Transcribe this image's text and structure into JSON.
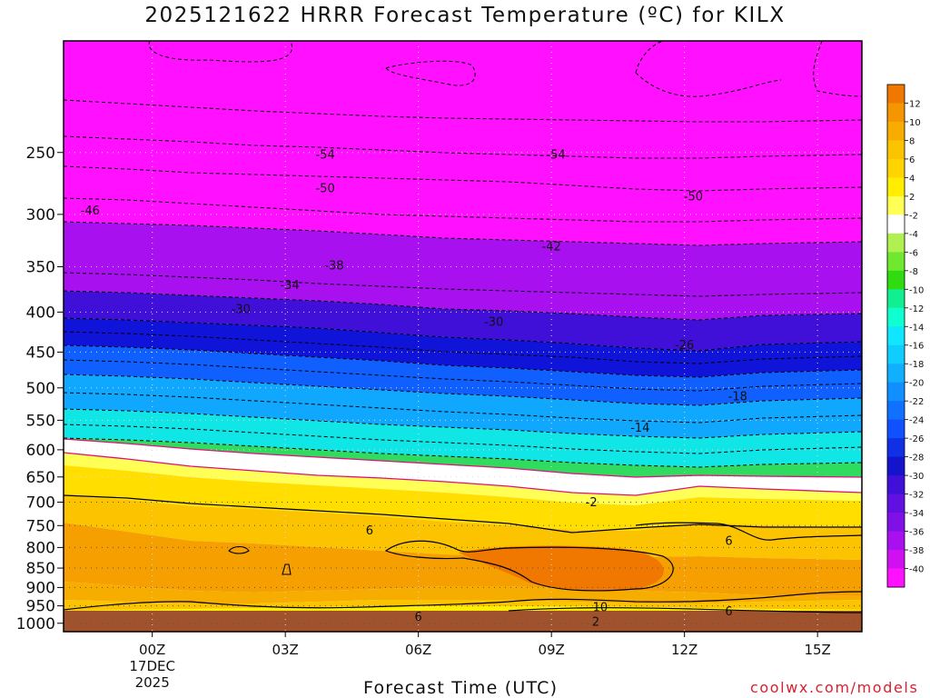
{
  "title": "2025121622 HRRR Forecast Temperature (ºC) for KILX",
  "credit": "coolwx.com/models",
  "chart_data": {
    "type": "contour",
    "title": "2025121622 HRRR Forecast Temperature (ºC) for KILX",
    "xlabel": "Forecast Time (UTC)",
    "ylabel": "",
    "xlim": [
      "2025-12-16 22:00",
      "2025-12-17 16:00"
    ],
    "ylim": [
      1025,
      180
    ],
    "y_scale": "log-pressure (hPa)",
    "x_ticks": [
      {
        "label": "00Z",
        "sub": [
          "17DEC",
          "2025"
        ],
        "hour": 2
      },
      {
        "label": "03Z",
        "hour": 5
      },
      {
        "label": "06Z",
        "hour": 8
      },
      {
        "label": "09Z",
        "hour": 11
      },
      {
        "label": "12Z",
        "hour": 14
      },
      {
        "label": "15Z",
        "hour": 17
      }
    ],
    "y_ticks": [
      250,
      300,
      350,
      400,
      450,
      500,
      550,
      600,
      650,
      700,
      750,
      800,
      850,
      900,
      950,
      1000
    ],
    "grid": true,
    "colorbar": {
      "labels": [
        "12",
        "10",
        "8",
        "6",
        "4",
        "2",
        "-2",
        "-4",
        "-6",
        "-8",
        "-10",
        "-12",
        "-14",
        "-16",
        "-18",
        "-20",
        "-22",
        "-24",
        "-26",
        "-28",
        "-30",
        "-32",
        "-34",
        "-36",
        "-38",
        "-40"
      ],
      "colors": [
        "#f07800",
        "#f59600",
        "#f7ac00",
        "#fbc300",
        "#ffd400",
        "#ffee00",
        "#ffff55",
        "#ffffff",
        "#b0f050",
        "#70e830",
        "#30dc10",
        "#10f090",
        "#10ffd0",
        "#10e6ff",
        "#10cdff",
        "#10b0ff",
        "#1090ff",
        "#1070ff",
        "#1050ff",
        "#1030e6",
        "#1414cc",
        "#4010d8",
        "#6010e0",
        "#8010e8",
        "#a810f0",
        "#d010f0",
        "#ff10ff"
      ]
    },
    "contour_labels": [
      {
        "value": -54,
        "hour": 5.9,
        "p": 252
      },
      {
        "value": -54,
        "hour": 11.1,
        "p": 252
      },
      {
        "value": -50,
        "hour": 5.9,
        "p": 278
      },
      {
        "value": -50,
        "hour": 14.2,
        "p": 285
      },
      {
        "value": -46,
        "hour": 0.6,
        "p": 297
      },
      {
        "value": -42,
        "hour": 11.0,
        "p": 330
      },
      {
        "value": -38,
        "hour": 6.1,
        "p": 349
      },
      {
        "value": -34,
        "hour": 5.1,
        "p": 370
      },
      {
        "value": -30,
        "hour": 4.0,
        "p": 397
      },
      {
        "value": -30,
        "hour": 9.7,
        "p": 412
      },
      {
        "value": -26,
        "hour": 14.0,
        "p": 441
      },
      {
        "value": -18,
        "hour": 15.2,
        "p": 513
      },
      {
        "value": -14,
        "hour": 13.0,
        "p": 563
      },
      {
        "value": -2,
        "hour": 11.9,
        "p": 701
      },
      {
        "value": 6,
        "hour": 6.9,
        "p": 762
      },
      {
        "value": 6,
        "hour": 15.0,
        "p": 785
      },
      {
        "value": 10,
        "hour": 12.1,
        "p": 955
      },
      {
        "value": 6,
        "hour": 8.0,
        "p": 982
      },
      {
        "value": 6,
        "hour": 15.0,
        "p": 966
      },
      {
        "value": 2,
        "hour": 12.0,
        "p": 997
      }
    ]
  }
}
